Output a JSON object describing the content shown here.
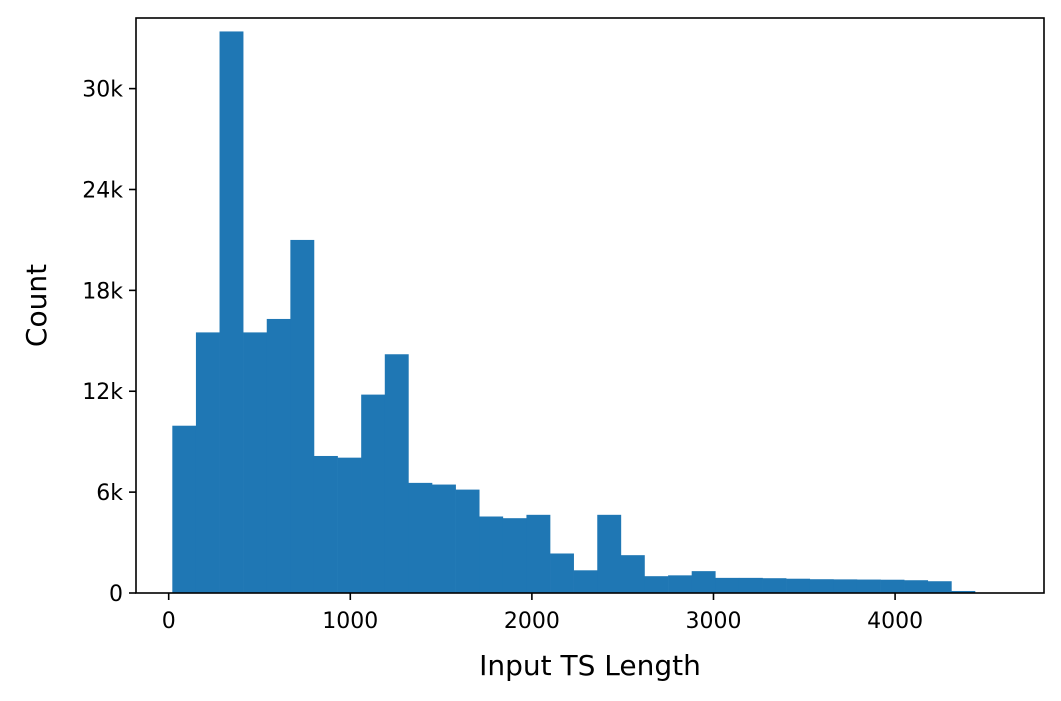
{
  "chart_data": {
    "type": "bar",
    "title": "",
    "xlabel": "Input TS Length",
    "ylabel": "Count",
    "xlim": [
      -180,
      4820
    ],
    "ylim": [
      0,
      34200
    ],
    "xticks": [
      0,
      1000,
      2000,
      3000,
      4000
    ],
    "xtick_labels": [
      "0",
      "1000",
      "2000",
      "3000",
      "4000"
    ],
    "yticks": [
      0,
      6000,
      12000,
      18000,
      24000,
      30000
    ],
    "ytick_labels": [
      "0",
      "6k",
      "12k",
      "18k",
      "24k",
      "30k"
    ],
    "grid": false,
    "color": "#1f77b4",
    "bins": [
      {
        "x0": 20,
        "x1": 150,
        "count": 9950
      },
      {
        "x0": 150,
        "x1": 280,
        "count": 15500
      },
      {
        "x0": 280,
        "x1": 410,
        "count": 33400
      },
      {
        "x0": 410,
        "x1": 540,
        "count": 15500
      },
      {
        "x0": 540,
        "x1": 670,
        "count": 16300
      },
      {
        "x0": 670,
        "x1": 800,
        "count": 21000
      },
      {
        "x0": 800,
        "x1": 930,
        "count": 8150
      },
      {
        "x0": 930,
        "x1": 1060,
        "count": 8050
      },
      {
        "x0": 1060,
        "x1": 1190,
        "count": 11800
      },
      {
        "x0": 1190,
        "x1": 1320,
        "count": 14200
      },
      {
        "x0": 1320,
        "x1": 1450,
        "count": 6550
      },
      {
        "x0": 1450,
        "x1": 1580,
        "count": 6450
      },
      {
        "x0": 1580,
        "x1": 1710,
        "count": 6150
      },
      {
        "x0": 1710,
        "x1": 1840,
        "count": 4550
      },
      {
        "x0": 1840,
        "x1": 1970,
        "count": 4450
      },
      {
        "x0": 1970,
        "x1": 2100,
        "count": 4650
      },
      {
        "x0": 2100,
        "x1": 2230,
        "count": 2350
      },
      {
        "x0": 2230,
        "x1": 2360,
        "count": 1350
      },
      {
        "x0": 2360,
        "x1": 2490,
        "count": 4650
      },
      {
        "x0": 2490,
        "x1": 2620,
        "count": 2250
      },
      {
        "x0": 2620,
        "x1": 2750,
        "count": 1000
      },
      {
        "x0": 2750,
        "x1": 2880,
        "count": 1050
      },
      {
        "x0": 2880,
        "x1": 3010,
        "count": 1300
      },
      {
        "x0": 3010,
        "x1": 3140,
        "count": 900
      },
      {
        "x0": 3140,
        "x1": 3270,
        "count": 900
      },
      {
        "x0": 3270,
        "x1": 3400,
        "count": 880
      },
      {
        "x0": 3400,
        "x1": 3530,
        "count": 850
      },
      {
        "x0": 3530,
        "x1": 3660,
        "count": 820
      },
      {
        "x0": 3660,
        "x1": 3790,
        "count": 810
      },
      {
        "x0": 3790,
        "x1": 3920,
        "count": 800
      },
      {
        "x0": 3920,
        "x1": 4050,
        "count": 790
      },
      {
        "x0": 4050,
        "x1": 4180,
        "count": 760
      },
      {
        "x0": 4180,
        "x1": 4310,
        "count": 700
      },
      {
        "x0": 4310,
        "x1": 4440,
        "count": 120
      }
    ]
  }
}
